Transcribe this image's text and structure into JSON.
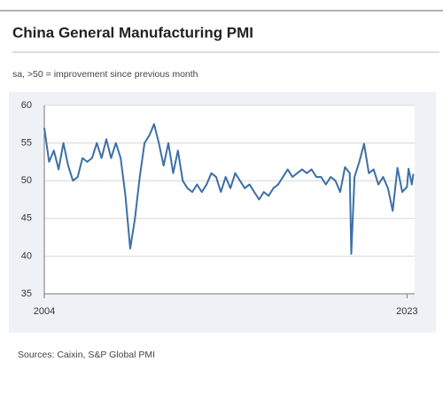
{
  "chart_data": {
    "type": "line",
    "title": "China General Manufacturing PMI",
    "subtitle": "sa, >50 = improvement since previous month",
    "source": "Sources: Caixin, S&P Global PMI",
    "color": "#3d6fa6",
    "grid": true,
    "ylim": [
      35,
      60
    ],
    "yticks": [
      35,
      40,
      45,
      50,
      55,
      60
    ],
    "xlim": [
      2004,
      2023.4
    ],
    "xticks": [
      2004,
      2023
    ],
    "x": [
      2004,
      2004.25,
      2004.5,
      2004.75,
      2005,
      2005.25,
      2005.5,
      2005.75,
      2006,
      2006.25,
      2006.5,
      2006.75,
      2007,
      2007.25,
      2007.5,
      2007.75,
      2008,
      2008.25,
      2008.5,
      2008.75,
      2009,
      2009.25,
      2009.5,
      2009.75,
      2010,
      2010.25,
      2010.5,
      2010.75,
      2011,
      2011.25,
      2011.5,
      2011.75,
      2012,
      2012.25,
      2012.5,
      2012.75,
      2013,
      2013.25,
      2013.5,
      2013.75,
      2014,
      2014.25,
      2014.5,
      2014.75,
      2015,
      2015.25,
      2015.5,
      2015.75,
      2016,
      2016.25,
      2016.5,
      2016.75,
      2017,
      2017.25,
      2017.5,
      2017.75,
      2018,
      2018.25,
      2018.5,
      2018.75,
      2019,
      2019.25,
      2019.5,
      2019.75,
      2020,
      2020.08,
      2020.25,
      2020.5,
      2020.75,
      2021,
      2021.25,
      2021.5,
      2021.75,
      2022,
      2022.25,
      2022.5,
      2022.75,
      2023,
      2023.08,
      2023.25,
      2023.33
    ],
    "values": [
      57,
      52.5,
      54,
      51.5,
      55,
      52,
      50,
      50.5,
      53,
      52.5,
      53,
      55,
      53,
      55.5,
      53,
      55,
      53,
      48,
      41,
      45,
      50.5,
      55,
      56,
      57.5,
      55,
      52,
      55,
      51,
      54,
      50,
      49,
      48.5,
      49.5,
      48.5,
      49.5,
      51,
      50.5,
      48.5,
      50.5,
      49,
      51,
      50,
      49,
      49.5,
      48.5,
      47.5,
      48.5,
      48,
      49,
      49.5,
      50.5,
      51.5,
      50.5,
      51,
      51.5,
      51,
      51.5,
      50.5,
      50.5,
      49.5,
      50.5,
      50,
      48.5,
      51.8,
      51,
      40.3,
      50.5,
      52.5,
      54.9,
      51,
      51.5,
      49.5,
      50.5,
      49,
      46,
      51.7,
      48.5,
      49.2,
      51.6,
      49.5,
      50.9
    ]
  }
}
